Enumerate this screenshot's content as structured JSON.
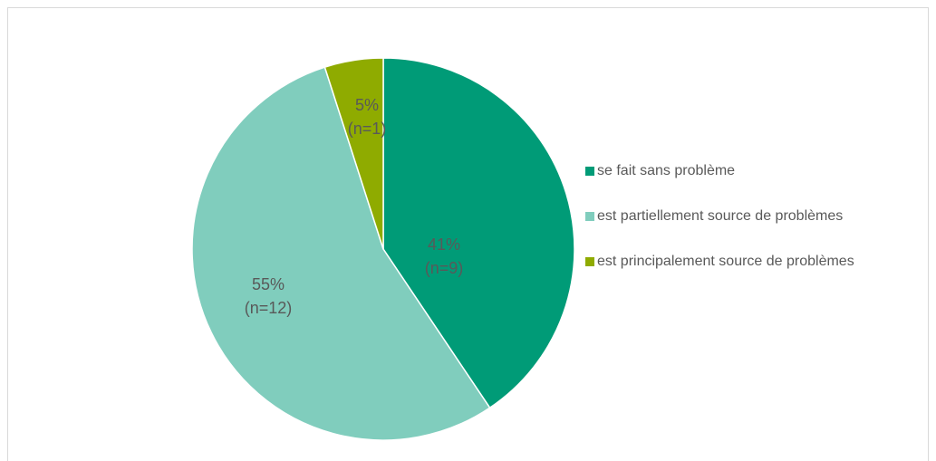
{
  "chart_data": {
    "type": "pie",
    "categories": [
      "se fait sans problème",
      "est partiellement source de problèmes",
      "est principalement source de problèmes"
    ],
    "values": [
      41,
      55,
      5
    ],
    "value_labels": [
      "41%",
      "55%",
      "5%"
    ],
    "counts": [
      9,
      12,
      1
    ],
    "count_labels": [
      "(n=9)",
      "(n=12)",
      "(n=1)"
    ],
    "colors": [
      "#009b77",
      "#80cdbd",
      "#8fab00"
    ],
    "legend": "right"
  }
}
